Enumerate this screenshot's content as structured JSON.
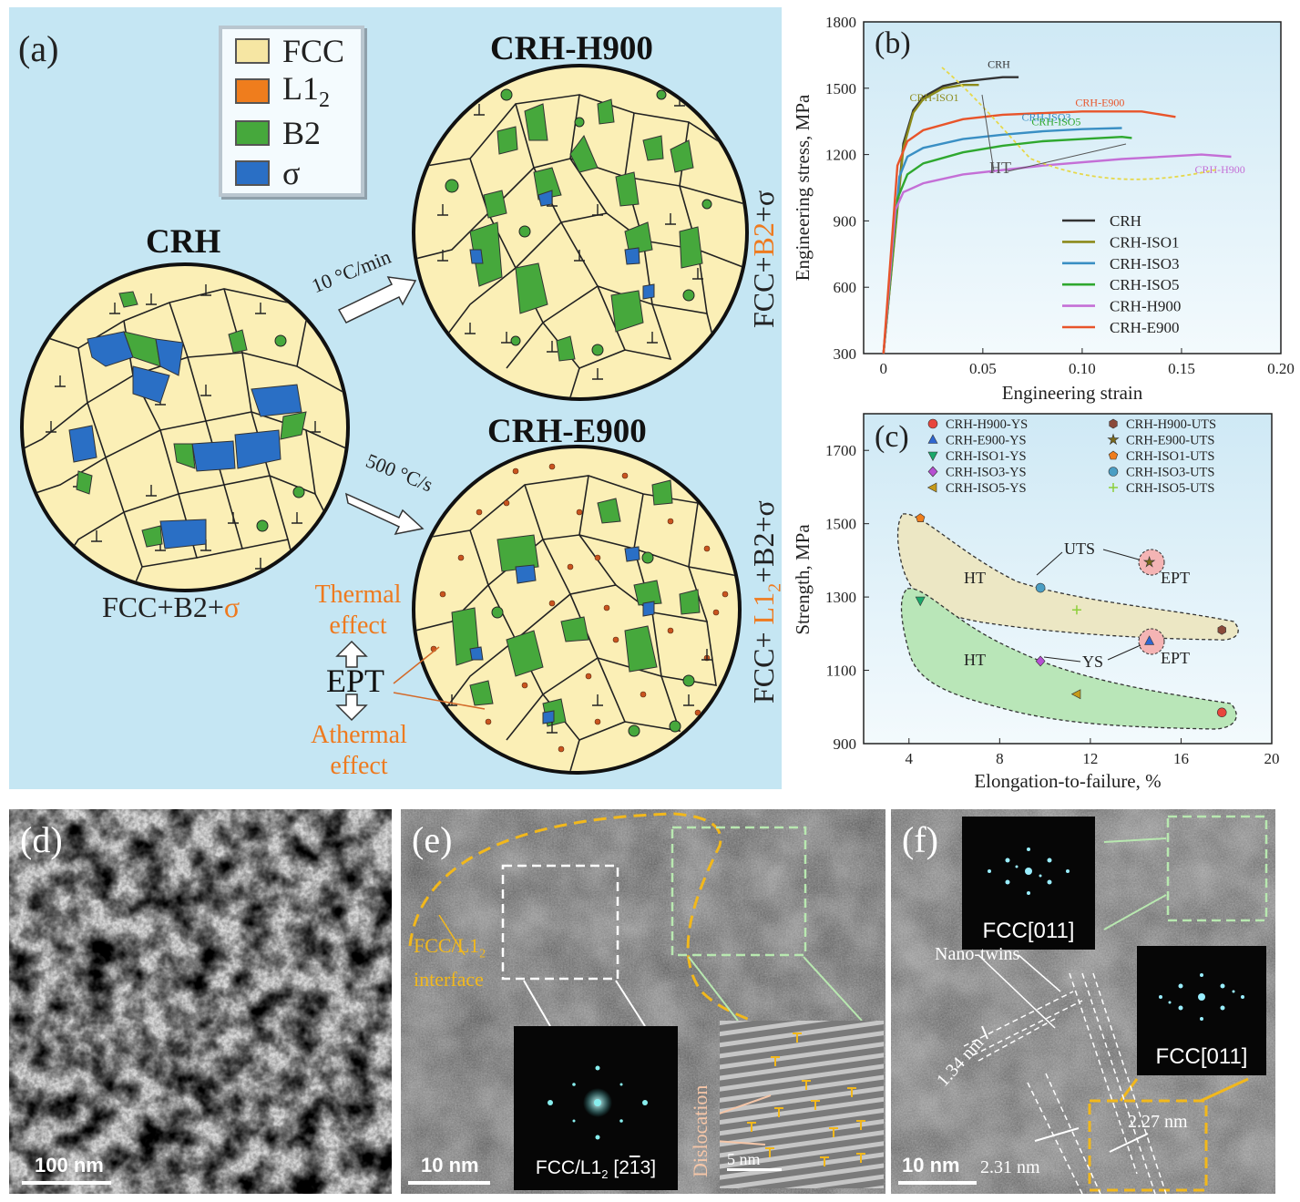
{
  "panel_a": {
    "label": "(a)",
    "legend": [
      {
        "name": "FCC",
        "color": "#f6e6a3"
      },
      {
        "name": "L1",
        "sub": "2",
        "color": "#ef7d1d"
      },
      {
        "name": "B2",
        "color": "#46a83c"
      },
      {
        "name": "σ",
        "color": "#2a6fc5"
      }
    ],
    "crh_title": "CRH",
    "crh_phase": "FCC+B2+",
    "crh_phase_sigma": "σ",
    "h900_title": "CRH-H900",
    "h900_phase_a": "FCC+",
    "h900_phase_b2": "B2",
    "h900_phase_c": "+σ",
    "e900_title": "CRH-E900",
    "e900_phase_a": "FCC+ ",
    "e900_phase_l12": "L1",
    "e900_phase_l12_sub": "2",
    "e900_phase_c": "+B2+σ",
    "rate_slow": "10 °C/min",
    "rate_fast": "500 °C/s",
    "thermal": "Thermal",
    "thermal2": "effect",
    "ept": "EPT",
    "athermal": "Athermal",
    "athermal2": "effect",
    "colors": {
      "background": "#c5e6f3",
      "fcc": "#fbefb6",
      "b2": "#46a83c",
      "sigma": "#2a6fc5",
      "l12": "#c9541f",
      "accent": "#ee7a1f"
    }
  },
  "panel_b": {
    "label": "(b)",
    "ht_label": "HT"
  },
  "panel_c": {
    "label": "(c)",
    "ht_top": "HT",
    "ht_bottom": "HT",
    "uts_label": "UTS",
    "ys_label": "YS",
    "ept_top": "EPT",
    "ept_bottom": "EPT"
  },
  "panel_d": {
    "label": "(d)",
    "scale": "100 nm"
  },
  "panel_e": {
    "label": "(e)",
    "interface": "FCC/L1",
    "interface_sub": "2",
    "interface2": "interface",
    "fft_label": "FCC/L1",
    "fft_sub": "2",
    "fft_zone": "[2",
    "fft_zone_bar": "1",
    "fft_zone_end": "3]",
    "dislocation": "Dislocation",
    "inset_scale": "5 nm",
    "scale": "10 nm"
  },
  "panel_f": {
    "label": "(f)",
    "fft_top": "FCC[011]",
    "fft_bottom": "FCC[011]",
    "twins": "Nano-twins",
    "d1": "1.34 nm",
    "d2": "2.31 nm",
    "d3": "2.27 nm",
    "scale": "10 nm"
  },
  "chart_data": [
    {
      "type": "line",
      "panel": "b",
      "xlabel": "Engineering strain",
      "ylabel": "Engineering stress, MPa",
      "xlim": [
        -0.01,
        0.2
      ],
      "ylim": [
        300,
        1800
      ],
      "xticks": [
        "0",
        "0.05",
        "0.10",
        "0.15",
        "0.20"
      ],
      "yticks": [
        "300",
        "600",
        "900",
        "1200",
        "1500",
        "1800"
      ],
      "legend_position": "bottom-right",
      "series": [
        {
          "name": "CRH",
          "color": "#333333",
          "x": [
            0,
            0.01,
            0.015,
            0.02,
            0.03,
            0.04,
            0.05,
            0.06,
            0.068
          ],
          "y": [
            300,
            1250,
            1400,
            1460,
            1510,
            1530,
            1540,
            1550,
            1550
          ]
        },
        {
          "name": "CRH-ISO1",
          "color": "#8c8a1a",
          "x": [
            0,
            0.01,
            0.015,
            0.02,
            0.03,
            0.04,
            0.048
          ],
          "y": [
            300,
            1230,
            1390,
            1450,
            1500,
            1515,
            1515
          ]
        },
        {
          "name": "CRH-ISO3",
          "color": "#3a8fc4",
          "x": [
            0,
            0.008,
            0.012,
            0.02,
            0.04,
            0.06,
            0.08,
            0.1,
            0.12
          ],
          "y": [
            300,
            1100,
            1190,
            1230,
            1270,
            1290,
            1305,
            1315,
            1320
          ]
        },
        {
          "name": "CRH-ISO5",
          "color": "#2fa82f",
          "x": [
            0,
            0.007,
            0.012,
            0.02,
            0.04,
            0.06,
            0.08,
            0.1,
            0.12,
            0.125
          ],
          "y": [
            300,
            1000,
            1110,
            1160,
            1210,
            1240,
            1260,
            1270,
            1280,
            1275
          ]
        },
        {
          "name": "CRH-H900",
          "color": "#c46fd6",
          "x": [
            0,
            0.006,
            0.01,
            0.02,
            0.04,
            0.08,
            0.12,
            0.16,
            0.175
          ],
          "y": [
            300,
            950,
            1030,
            1070,
            1110,
            1150,
            1180,
            1200,
            1190
          ]
        },
        {
          "name": "CRH-E900",
          "color": "#e8542a",
          "x": [
            0,
            0.007,
            0.012,
            0.02,
            0.04,
            0.06,
            0.1,
            0.13,
            0.147
          ],
          "y": [
            300,
            1150,
            1260,
            1310,
            1360,
            1380,
            1395,
            1395,
            1370
          ]
        }
      ],
      "annotations": [
        "CRH",
        "CRH-ISO1",
        "CRH-ISO3",
        "CRH-ISO5",
        "CRH-H900",
        "CRH-E900"
      ]
    },
    {
      "type": "scatter",
      "panel": "c",
      "xlabel": "Elongation-to-failure, %",
      "ylabel": "Strength, MPa",
      "xlim": [
        2,
        20
      ],
      "ylim": [
        900,
        1800
      ],
      "xticks": [
        "4",
        "8",
        "12",
        "16",
        "20"
      ],
      "yticks": [
        "900",
        "1100",
        "1300",
        "1500",
        "1700"
      ],
      "legend_position": "top",
      "series": [
        {
          "name": "CRH-H900-YS",
          "marker": "circle",
          "color": "#e8453c",
          "x": [
            17.8
          ],
          "y": [
            985
          ]
        },
        {
          "name": "CRH-H900-UTS",
          "marker": "hexagon",
          "color": "#8a4a3a",
          "x": [
            17.8
          ],
          "y": [
            1210
          ]
        },
        {
          "name": "CRH-E900-YS",
          "marker": "triangle-up",
          "color": "#2f66d0",
          "x": [
            14.6
          ],
          "y": [
            1180
          ]
        },
        {
          "name": "CRH-E900-UTS",
          "marker": "star",
          "color": "#7a6a1a",
          "x": [
            14.6
          ],
          "y": [
            1395
          ]
        },
        {
          "name": "CRH-ISO1-YS",
          "marker": "triangle-down",
          "color": "#1aa86a",
          "x": [
            4.5
          ],
          "y": [
            1290
          ]
        },
        {
          "name": "CRH-ISO1-UTS",
          "marker": "pentagon",
          "color": "#ef7d1d",
          "x": [
            4.5
          ],
          "y": [
            1515
          ]
        },
        {
          "name": "CRH-ISO3-YS",
          "marker": "diamond",
          "color": "#b64fd2",
          "x": [
            9.8
          ],
          "y": [
            1125
          ]
        },
        {
          "name": "CRH-ISO3-UTS",
          "marker": "sphere",
          "color": "#4a9ec4",
          "x": [
            9.8
          ],
          "y": [
            1325
          ]
        },
        {
          "name": "CRH-ISO5-YS",
          "marker": "triangle-left",
          "color": "#c59a1a",
          "x": [
            11.4
          ],
          "y": [
            1035
          ]
        },
        {
          "name": "CRH-ISO5-UTS",
          "marker": "plus",
          "color": "#8ccf3a",
          "x": [
            11.4
          ],
          "y": [
            1265
          ]
        }
      ]
    }
  ]
}
